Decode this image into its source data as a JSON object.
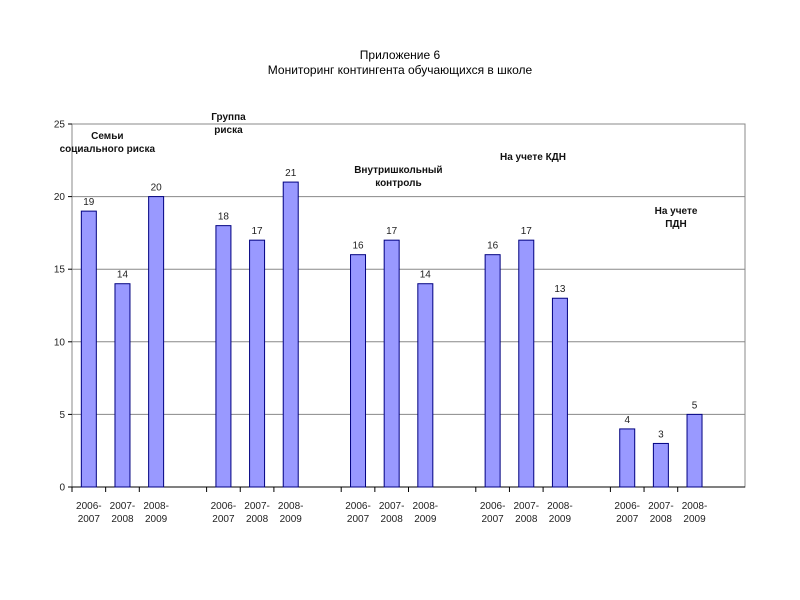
{
  "title": {
    "line1": "Приложение  6",
    "line2": "Мониторинг  контингента  обучающихся в школе"
  },
  "colors": {
    "bar": "#9999ff",
    "bar_stroke": "#000080",
    "grid": "#888888"
  },
  "chart_data": {
    "type": "bar",
    "title": "",
    "xlabel": "",
    "ylabel": "",
    "ylim": [
      0,
      25
    ],
    "yticks": [
      0,
      5,
      10,
      15,
      20,
      25
    ],
    "grid": true,
    "legend": "none",
    "groups": [
      {
        "annotation": [
          "Семьи",
          "социального риска"
        ],
        "categories": [
          "2006-2007",
          "2007-2008",
          "2008-2009"
        ],
        "values": [
          19,
          14,
          20
        ]
      },
      {
        "annotation": [
          "Группа",
          "риска"
        ],
        "categories": [
          "2006-2007",
          "2007-2008",
          "2008-2009"
        ],
        "values": [
          18,
          17,
          21
        ]
      },
      {
        "annotation": [
          "Внутришкольный",
          "контроль"
        ],
        "categories": [
          "2006-2007",
          "2007-2008",
          "2008-2009"
        ],
        "values": [
          16,
          17,
          14
        ]
      },
      {
        "annotation": [
          "На  учете  КДН"
        ],
        "categories": [
          "2006-2007",
          "2007-2008",
          "2008-2009"
        ],
        "values": [
          16,
          17,
          13
        ]
      },
      {
        "annotation": [
          "На  учете",
          "ПДН"
        ],
        "categories": [
          "2006-2007",
          "2007-2008",
          "2008-2009"
        ],
        "values": [
          4,
          3,
          5
        ]
      }
    ]
  }
}
